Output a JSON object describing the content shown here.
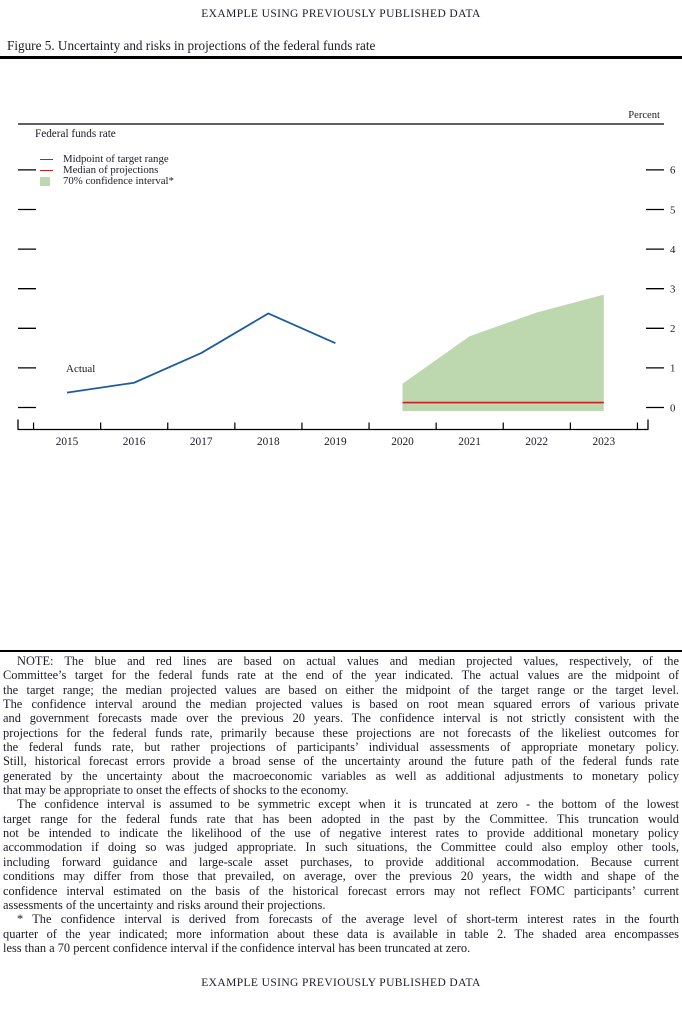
{
  "page": {
    "running_head": "EXAMPLE USING PREVIOUSLY PUBLISHED DATA",
    "footer": "EXAMPLE USING PREVIOUSLY PUBLISHED DATA"
  },
  "figure": {
    "title": "Figure 5. Uncertainty and risks in projections of the federal funds rate"
  },
  "chart": {
    "percent_label": "Percent",
    "subtitle": "Federal funds rate",
    "actual_label": "Actual",
    "legend": [
      {
        "swatch": "blue-dash",
        "label": "Midpoint of target range",
        "color": "#1f5c9e"
      },
      {
        "swatch": "red-dash",
        "label": "Median of projections",
        "color": "#cc1f1f"
      },
      {
        "swatch": "green-square",
        "label": "70% confidence interval*",
        "color": "#bdd8ae"
      }
    ]
  },
  "chart_data": {
    "type": "line",
    "title": "Federal funds rate",
    "ylabel": "Percent",
    "ylim": [
      0,
      6
    ],
    "yticks": [
      0,
      1,
      2,
      3,
      4,
      5,
      6
    ],
    "xticks": [
      2015,
      2016,
      2017,
      2018,
      2019,
      2020,
      2021,
      2022,
      2023
    ],
    "grid": false,
    "legend_position": "top-left",
    "series": [
      {
        "name": "Midpoint of target range (Actual)",
        "color": "#1f5c9e",
        "x": [
          2015,
          2016,
          2017,
          2018,
          2019
        ],
        "values": [
          0.375,
          0.625,
          1.375,
          2.375,
          1.625
        ]
      },
      {
        "name": "Median of projections",
        "color": "#cc1f1f",
        "x": [
          2020,
          2021,
          2022,
          2023
        ],
        "values": [
          0.125,
          0.125,
          0.125,
          0.125
        ]
      }
    ],
    "band": {
      "name": "70% confidence interval",
      "color": "#bdd8ae",
      "x": [
        2020,
        2021,
        2022,
        2023
      ],
      "upper": [
        0.6,
        1.8,
        2.4,
        2.85
      ],
      "lower": [
        0,
        0,
        0,
        0
      ],
      "truncated_at_zero": true
    }
  },
  "notes": {
    "paragraphs": [
      {
        "lines": [
          "NOTE: The blue and red lines are based on actual values and median projected values, respectively, of the",
          "Committee’s target for the federal funds rate at the end of the year indicated. The actual values are the midpoint of",
          "the target range; the median projected values are based on either the midpoint of the target range or the target level.",
          "The confidence interval around the median projected values is based on root mean squared errors of various private",
          "and government forecasts made over the previous 20 years. The confidence interval is not strictly consistent with the",
          "projections for the federal funds rate, primarily because these projections are not forecasts of the likeliest outcomes for",
          "the federal funds rate, but rather projections of participants’ individual assessments of appropriate monetary policy.",
          "Still, historical forecast errors provide a broad sense of the uncertainty around the future path of the federal funds rate",
          "generated by the uncertainty about the macroeconomic variables as well as additional adjustments to monetary policy",
          "that may be appropriate to onset the effects of shocks to the economy."
        ]
      },
      {
        "lines": [
          "The confidence interval is assumed to be symmetric except when it is truncated at zero - the bottom of the lowest",
          "target range for the federal funds rate that has been adopted in the past by the Committee. This truncation would",
          "not be intended to indicate the likelihood of the use of negative interest rates to provide additional monetary policy",
          "accommodation if doing so was judged appropriate. In such situations, the Committee could also employ other tools,",
          "including forward guidance and large-scale asset purchases, to provide additional accommodation. Because current",
          "conditions may differ from those that prevailed, on average, over the previous 20 years, the width and shape of the",
          "confidence interval estimated on the basis of the historical forecast errors may not reflect FOMC participants’ current",
          "assessments of the uncertainty and risks around their projections."
        ]
      },
      {
        "lines": [
          "* The confidence interval is derived from forecasts of the average level of short-term interest rates in the fourth",
          "quarter of the year indicated; more information about these data is available in table 2. The shaded area encompasses",
          "less than a 70 percent confidence interval if the confidence interval has been truncated at zero."
        ]
      }
    ]
  }
}
